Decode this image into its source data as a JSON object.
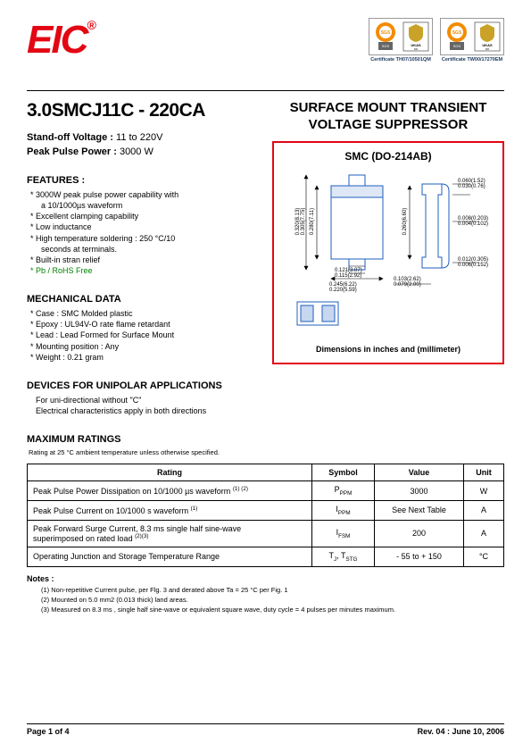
{
  "header": {
    "logo_text": "EIC",
    "logo_reg": "®",
    "certs": [
      {
        "label": "Certificate  TH07/10501QM"
      },
      {
        "label": "Certificate  TW00/17270EM"
      }
    ],
    "badge_colors": {
      "orange": "#f28c00",
      "gray": "#666666",
      "gold": "#c9a227",
      "black": "#111111"
    }
  },
  "left": {
    "part_title": "3.0SMCJ11C - 220CA",
    "standoff_label": "Stand-off Voltage :",
    "standoff_value": " 11 to 220V",
    "ppp_label": "Peak Pulse Power :",
    "ppp_value": " 3000 W",
    "features_hdr": "FEATURES :",
    "features": [
      "3000W peak pulse power capability with",
      "  a 10/1000µs  waveform",
      "Excellent clamping capability",
      "Low inductance",
      "High temperature soldering : 250 °C/10",
      "  seconds at terminals.",
      "Built-in stran relief"
    ],
    "features_green": "Pb / RoHS Free",
    "mech_hdr": "MECHANICAL DATA",
    "mech": [
      "Case :  SMC Molded plastic",
      "Epoxy : UL94V-O rate flame retardant",
      "Lead : Lead Formed for Surface Mount",
      "Mounting  position : Any",
      "Weight : 0.21 gram"
    ],
    "uni_hdr": "DEVICES FOR UNIPOLAR APPLICATIONS",
    "uni_lines": [
      "For uni-directional without \"C\"",
      "Electrical characteristics apply in both directions"
    ],
    "max_hdr": "MAXIMUM RATINGS",
    "max_note": "Rating at 25 °C ambient temperature unless otherwise specified."
  },
  "right": {
    "title": "SURFACE MOUNT TRANSIENT\nVOLTAGE SUPPRESSOR",
    "pkg_title": "SMC (DO-214AB)",
    "dim_label": "Dimensions in inches and  (millimeter)",
    "dims": {
      "d1a": "0.060(1.52)",
      "d1b": "0.030(0.76)",
      "d2a": "0.008(0.203)",
      "d2b": "0.004(0.102)",
      "d3a": "0.012(0.305)",
      "d3b": "0.006(0.152)",
      "d4a": "0.103(2.62)",
      "d4b": "0.079(2.00)",
      "d5a": "0.245(6.22)",
      "d5b": "0.220(5.59)",
      "d6a": "0.121(3.07)",
      "d6b": "0.115(2.92)",
      "d7a": "0.320(8.13)",
      "d7b": "0.305(7.75)",
      "d8a": "0.280(7.11)",
      "d9a": "0.260(6.60)"
    },
    "colors": {
      "border": "#e30613",
      "blue": "#1f5fbf",
      "black": "#000000"
    }
  },
  "table": {
    "headers": [
      "Rating",
      "Symbol",
      "Value",
      "Unit"
    ],
    "rows": [
      {
        "rating_html": "Peak Pulse Power Dissipation on 10/1000 µs waveform <sup class='note'>(1) (2)</sup>",
        "symbol_html": "P<sub>PPM</sub>",
        "value": "3000",
        "unit": "W"
      },
      {
        "rating_html": "Peak Pulse Current on 10/1000 s waveform <sup class='note'>(1)</sup>",
        "symbol_html": "I<sub>PPM</sub>",
        "value": "See Next Table",
        "unit": "A"
      },
      {
        "rating_html": "Peak Forward Surge Current, 8.3 ms single half sine-wave<br>superimposed on rated load <sup class='note'>(2)(3)</sup>",
        "symbol_html": "I<sub>FSM</sub>",
        "value": "200",
        "unit": "A"
      },
      {
        "rating_html": "Operating Junction and Storage Temperature Range",
        "symbol_html": "T<sub>J</sub>, T<sub>STG</sub>",
        "value": "- 55 to + 150",
        "unit": "°C"
      }
    ]
  },
  "notes": {
    "hdr": "Notes :",
    "items": [
      "(1) Non-repetitive Current pulse, per Flg. 3 and derated above Ta = 25 °C per Fig. 1",
      "(2) Mounted on 5.0 mm2 (0.013 thick) land areas.",
      "(3) Measured on 8.3 ms , single half sine-wave or equivalent square wave, duty cycle = 4 pulses per minutes maximum."
    ]
  },
  "footer": {
    "page": "Page 1 of 4",
    "rev": "Rev. 04 : June 10, 2006"
  }
}
